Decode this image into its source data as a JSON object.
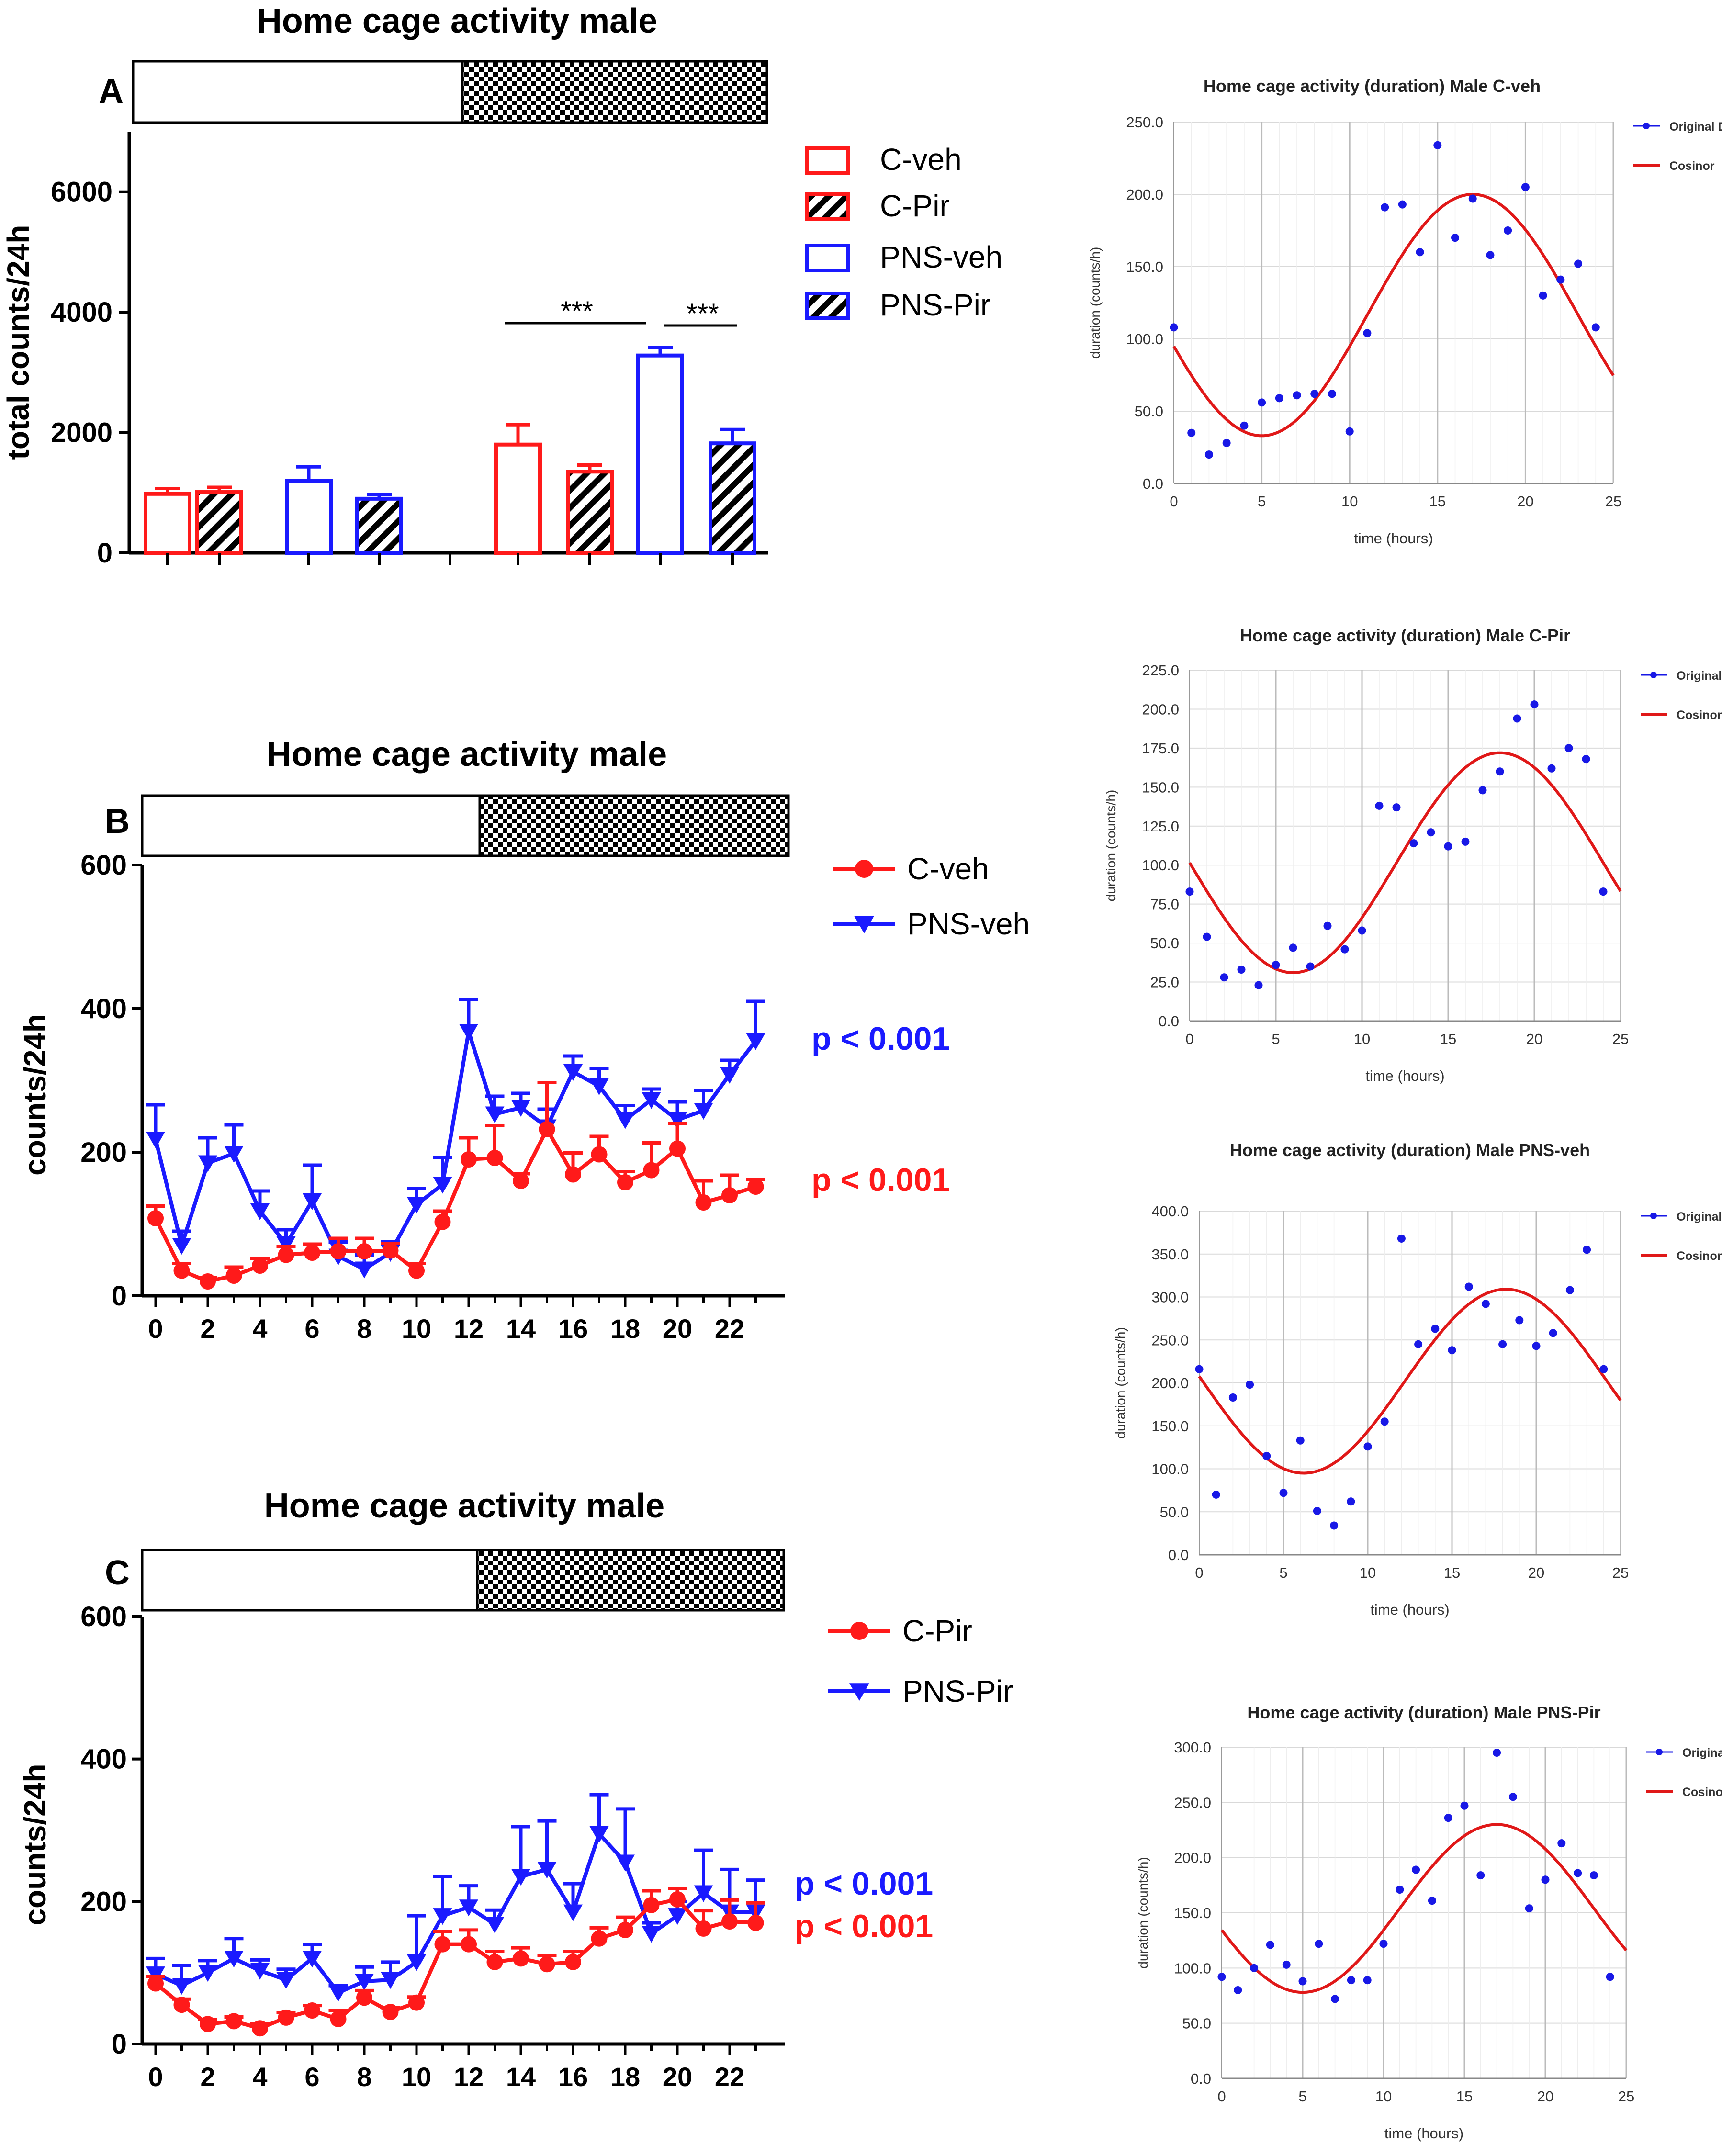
{
  "colors": {
    "red": "#ff1a1a",
    "blue": "#1a1aff",
    "black": "#000000",
    "grid": "#d9d9d9",
    "cosinor": "#e01818",
    "dot": "#1818e6"
  },
  "panels": {
    "A": {
      "letter": "A",
      "title": "Home cage activity male"
    },
    "B": {
      "letter": "B",
      "title": "Home cage activity male"
    },
    "C": {
      "letter": "C",
      "title": "Home cage activity male"
    }
  },
  "chart_data": [
    {
      "id": "A",
      "type": "bar",
      "title": "Home cage activity male",
      "ylabel": "total counts/24h",
      "ylim": [
        0,
        7000
      ],
      "yticks": [
        0,
        2000,
        4000,
        6000
      ],
      "legend": [
        "C-veh",
        "C-Pir",
        "PNS-veh",
        "PNS-Pir"
      ],
      "groups": [
        {
          "phase": "light",
          "bars": [
            {
              "series": "C-veh",
              "value": 980,
              "err": 90
            },
            {
              "series": "C-Pir",
              "value": 1010,
              "err": 80
            },
            {
              "series": "PNS-veh",
              "value": 1200,
              "err": 230
            },
            {
              "series": "PNS-Pir",
              "value": 900,
              "err": 70
            }
          ]
        },
        {
          "phase": "dark",
          "bars": [
            {
              "series": "C-veh",
              "value": 1800,
              "err": 330
            },
            {
              "series": "C-Pir",
              "value": 1350,
              "err": 110
            },
            {
              "series": "PNS-veh",
              "value": 3280,
              "err": 130
            },
            {
              "series": "PNS-Pir",
              "value": 1820,
              "err": 230
            }
          ]
        }
      ],
      "significance": [
        {
          "label": "***",
          "from": "C-veh dark",
          "to": "PNS-veh dark"
        },
        {
          "label": "***",
          "from": "PNS-veh dark",
          "to": "PNS-Pir dark"
        }
      ]
    },
    {
      "id": "B",
      "type": "line",
      "title": "Home cage activity male",
      "ylabel": "counts/24h",
      "ylim": [
        0,
        600
      ],
      "yticks": [
        0,
        200,
        400,
        600
      ],
      "xticks": [
        0,
        2,
        4,
        6,
        8,
        10,
        12,
        14,
        16,
        18,
        20,
        22
      ],
      "x": [
        0,
        1,
        2,
        3,
        4,
        5,
        6,
        7,
        8,
        9,
        10,
        11,
        12,
        13,
        14,
        15,
        16,
        17,
        18,
        19,
        20,
        21,
        22,
        23
      ],
      "series": [
        {
          "name": "C-veh",
          "marker": "circle",
          "p_label": "p < 0.001",
          "values": [
            108,
            35,
            20,
            28,
            42,
            57,
            60,
            62,
            62,
            63,
            35,
            103,
            190,
            192,
            160,
            232,
            169,
            197,
            158,
            175,
            205,
            130,
            140,
            152
          ],
          "errors": [
            17,
            10,
            5,
            12,
            10,
            12,
            12,
            18,
            18,
            10,
            10,
            15,
            30,
            45,
            10,
            65,
            30,
            25,
            15,
            38,
            35,
            30,
            28,
            10
          ]
        },
        {
          "name": "PNS-veh",
          "marker": "triangle-down",
          "p_label": "p < 0.001",
          "values": [
            218,
            70,
            185,
            198,
            118,
            72,
            132,
            55,
            37,
            60,
            127,
            155,
            368,
            253,
            262,
            235,
            312,
            292,
            245,
            273,
            245,
            258,
            308,
            355
          ],
          "errors": [
            48,
            20,
            35,
            40,
            28,
            20,
            50,
            20,
            20,
            15,
            22,
            38,
            45,
            25,
            20,
            25,
            22,
            25,
            20,
            15,
            25,
            28,
            20,
            55
          ]
        }
      ]
    },
    {
      "id": "C",
      "type": "line",
      "title": "Home cage activity male",
      "ylabel": "counts/24h",
      "ylim": [
        0,
        600
      ],
      "yticks": [
        0,
        200,
        400,
        600
      ],
      "xticks": [
        0,
        2,
        4,
        6,
        8,
        10,
        12,
        14,
        16,
        18,
        20,
        22
      ],
      "x": [
        0,
        1,
        2,
        3,
        4,
        5,
        6,
        7,
        8,
        9,
        10,
        11,
        12,
        13,
        14,
        15,
        16,
        17,
        18,
        19,
        20,
        21,
        22,
        23
      ],
      "series": [
        {
          "name": "C-Pir",
          "marker": "circle",
          "p_label": "p < 0.001",
          "values": [
            85,
            55,
            28,
            32,
            22,
            37,
            47,
            35,
            65,
            45,
            58,
            140,
            140,
            115,
            120,
            112,
            115,
            148,
            160,
            195,
            203,
            162,
            172,
            170
          ],
          "errors": [
            10,
            8,
            6,
            6,
            6,
            7,
            7,
            12,
            10,
            6,
            8,
            18,
            20,
            15,
            15,
            12,
            15,
            15,
            18,
            20,
            15,
            25,
            30,
            28
          ]
        },
        {
          "name": "PNS-Pir",
          "marker": "triangle-down",
          "p_label": "p < 0.001",
          "values": [
            98,
            82,
            100,
            120,
            103,
            90,
            120,
            72,
            88,
            90,
            115,
            180,
            192,
            168,
            235,
            245,
            185,
            295,
            255,
            155,
            180,
            212,
            185,
            185
          ],
          "errors": [
            22,
            28,
            17,
            28,
            15,
            15,
            20,
            10,
            20,
            25,
            65,
            55,
            30,
            20,
            70,
            68,
            40,
            55,
            75,
            15,
            20,
            60,
            60,
            45
          ]
        }
      ]
    },
    {
      "id": "R1",
      "type": "scatter",
      "title": "Home cage activity (duration) Male C-veh",
      "xlabel": "time (hours)",
      "ylabel": "duration (counts/h)",
      "xlim": [
        0,
        25
      ],
      "xticks": [
        0,
        5,
        10,
        15,
        20,
        25
      ],
      "ylim": [
        0,
        250
      ],
      "yticks": [
        "0.0",
        "50.0",
        "100.0",
        "150.0",
        "200.0",
        "250.0"
      ],
      "legend": [
        "Original Data",
        "Cosinor"
      ],
      "x": [
        0,
        1,
        2,
        3,
        4,
        5,
        6,
        7,
        8,
        9,
        10,
        11,
        12,
        13,
        14,
        15,
        16,
        17,
        18,
        19,
        20,
        21,
        22,
        23,
        24
      ],
      "y": [
        108,
        35,
        20,
        28,
        40,
        56,
        59,
        61,
        62,
        62,
        36,
        104,
        191,
        193,
        160,
        234,
        170,
        197,
        158,
        175,
        205,
        130,
        141,
        152,
        108
      ],
      "cosinor": {
        "mesor": 116.5,
        "amplitude": 83.5,
        "acrophase_h": 17,
        "period_h": 24
      }
    },
    {
      "id": "R2",
      "type": "scatter",
      "title": "Home cage activity (duration) Male C-Pir",
      "xlabel": "time (hours)",
      "ylabel": "duration (counts/h)",
      "xlim": [
        0,
        25
      ],
      "xticks": [
        0,
        5,
        10,
        15,
        20,
        25
      ],
      "ylim": [
        0,
        225
      ],
      "yticks": [
        "0.0",
        "25.0",
        "50.0",
        "75.0",
        "100.0",
        "125.0",
        "150.0",
        "175.0",
        "200.0",
        "225.0"
      ],
      "legend": [
        "Original Data",
        "Cosinor"
      ],
      "x": [
        0,
        1,
        2,
        3,
        4,
        5,
        6,
        7,
        8,
        9,
        10,
        11,
        12,
        13,
        14,
        15,
        16,
        17,
        18,
        19,
        20,
        21,
        22,
        23,
        24
      ],
      "y": [
        83,
        54,
        28,
        33,
        23,
        36,
        47,
        35,
        61,
        46,
        58,
        138,
        137,
        114,
        121,
        112,
        115,
        148,
        160,
        194,
        203,
        162,
        175,
        168,
        83
      ],
      "cosinor": {
        "mesor": 101.5,
        "amplitude": 70.5,
        "acrophase_h": 18,
        "period_h": 24
      }
    },
    {
      "id": "R3",
      "type": "scatter",
      "title": "Home cage activity (duration) Male PNS-veh",
      "xlabel": "time (hours)",
      "ylabel": "duration (counts/h)",
      "xlim": [
        0,
        25
      ],
      "xticks": [
        0,
        5,
        10,
        15,
        20,
        25
      ],
      "ylim": [
        0,
        400
      ],
      "yticks": [
        "0.0",
        "50.0",
        "100.0",
        "150.0",
        "200.0",
        "250.0",
        "300.0",
        "350.0",
        "400.0"
      ],
      "legend": [
        "Original Data",
        "Cosinor"
      ],
      "x": [
        0,
        1,
        2,
        3,
        4,
        5,
        6,
        7,
        8,
        9,
        10,
        11,
        12,
        13,
        14,
        15,
        16,
        17,
        18,
        19,
        20,
        21,
        22,
        23,
        24
      ],
      "y": [
        216,
        70,
        183,
        198,
        115,
        72,
        133,
        51,
        34,
        62,
        126,
        155,
        368,
        245,
        263,
        238,
        312,
        292,
        245,
        273,
        243,
        258,
        308,
        355,
        216
      ],
      "cosinor": {
        "mesor": 202,
        "amplitude": 107,
        "acrophase_h": 18.2,
        "period_h": 24
      }
    },
    {
      "id": "R4",
      "type": "scatter",
      "title": "Home cage activity (duration) Male PNS-Pir",
      "xlabel": "time (hours)",
      "ylabel": "duration (counts/h)",
      "xlim": [
        0,
        25
      ],
      "xticks": [
        0,
        5,
        10,
        15,
        20,
        25
      ],
      "ylim": [
        0,
        300
      ],
      "yticks": [
        "0.0",
        "50.0",
        "100.0",
        "150.0",
        "200.0",
        "250.0",
        "300.0"
      ],
      "legend": [
        "Original Data",
        "Cosinor"
      ],
      "x": [
        0,
        1,
        2,
        3,
        4,
        5,
        6,
        7,
        8,
        9,
        10,
        11,
        12,
        13,
        14,
        15,
        16,
        17,
        18,
        19,
        20,
        21,
        22,
        23,
        24
      ],
      "y": [
        92,
        80,
        100,
        121,
        103,
        88,
        122,
        72,
        89,
        89,
        122,
        171,
        189,
        161,
        236,
        247,
        184,
        295,
        255,
        154,
        180,
        213,
        186,
        184,
        92
      ],
      "cosinor": {
        "mesor": 154,
        "amplitude": 76,
        "acrophase_h": 17,
        "period_h": 24
      }
    }
  ]
}
